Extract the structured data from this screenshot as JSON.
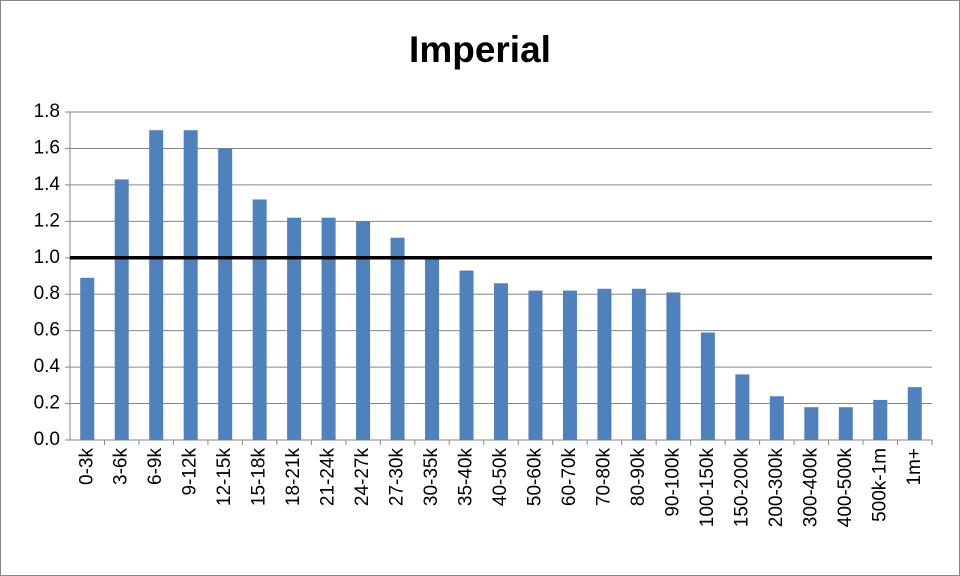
{
  "chart_data": {
    "type": "bar",
    "title": "Imperial",
    "categories": [
      "0-3k",
      "3-6k",
      "6-9k",
      "9-12k",
      "12-15k",
      "15-18k",
      "18-21k",
      "21-24k",
      "24-27k",
      "27-30k",
      "30-35k",
      "35-40k",
      "40-50k",
      "50-60k",
      "60-70k",
      "70-80k",
      "80-90k",
      "90-100k",
      "100-150k",
      "150-200k",
      "200-300k",
      "300-400k",
      "400-500k",
      "500k-1m",
      "1m+"
    ],
    "values": [
      0.89,
      1.43,
      1.7,
      1.7,
      1.6,
      1.32,
      1.22,
      1.22,
      1.2,
      1.11,
      1.0,
      0.93,
      0.86,
      0.82,
      0.82,
      0.83,
      0.83,
      0.81,
      0.59,
      0.36,
      0.24,
      0.18,
      0.18,
      0.22,
      0.29
    ],
    "color": "#4f81bd",
    "ylim": [
      0,
      1.8
    ],
    "yticks": [
      {
        "value": 0,
        "label": "0.0"
      },
      0.2,
      0.4,
      0.6,
      0.8,
      {
        "value": 1,
        "label": "1.0"
      },
      1.2,
      1.4,
      1.6,
      1.8
    ],
    "grid": true,
    "reference_line": 1
  }
}
